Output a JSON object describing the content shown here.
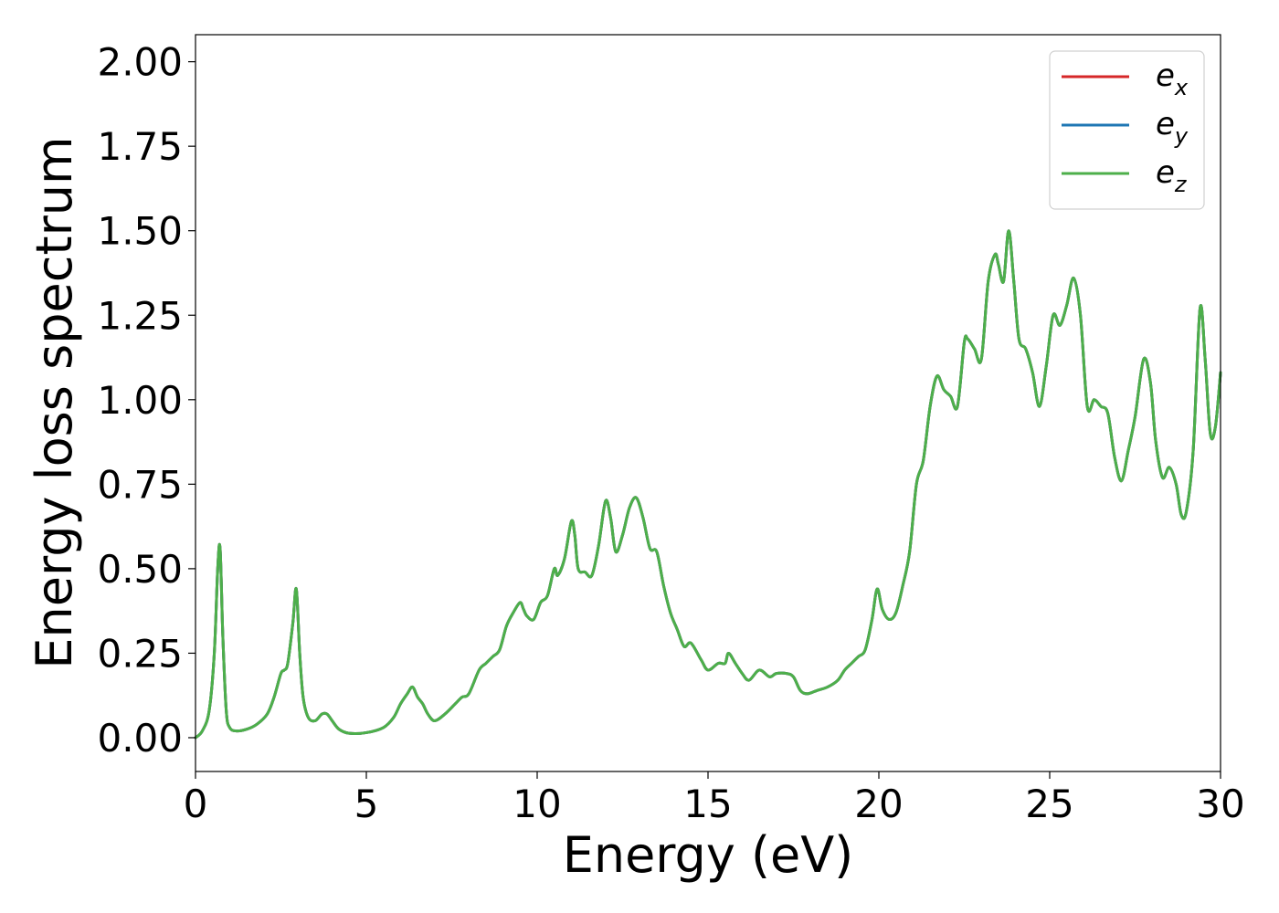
{
  "chart_data": {
    "type": "line",
    "title": "",
    "xlabel": "Energy (eV)",
    "ylabel": "Energy loss spectrum",
    "xlim": [
      0,
      30
    ],
    "ylim": [
      -0.1,
      2.08
    ],
    "xticks": [
      0,
      5,
      10,
      15,
      20,
      25,
      30
    ],
    "xtick_labels": [
      "0",
      "5",
      "10",
      "15",
      "20",
      "25",
      "30"
    ],
    "yticks": [
      0,
      0.25,
      0.5,
      0.75,
      1.0,
      1.25,
      1.5,
      1.75,
      2.0
    ],
    "ytick_labels": [
      "0.00",
      "0.25",
      "0.50",
      "0.75",
      "1.00",
      "1.25",
      "1.50",
      "1.75",
      "2.00"
    ],
    "grid": false,
    "legend_position": "top-right",
    "x": [
      0,
      0.2,
      0.4,
      0.55,
      0.65,
      0.72,
      0.8,
      0.9,
      1.0,
      1.2,
      1.5,
      1.8,
      2.1,
      2.3,
      2.5,
      2.6,
      2.7,
      2.85,
      2.95,
      3.05,
      3.15,
      3.3,
      3.5,
      3.7,
      3.85,
      4.0,
      4.2,
      4.5,
      5.0,
      5.5,
      5.8,
      6.0,
      6.2,
      6.35,
      6.5,
      6.65,
      6.8,
      7.0,
      7.3,
      7.6,
      7.8,
      8.0,
      8.3,
      8.5,
      8.7,
      8.9,
      9.1,
      9.3,
      9.5,
      9.6,
      9.7,
      9.9,
      10.1,
      10.3,
      10.5,
      10.6,
      10.8,
      11.0,
      11.1,
      11.2,
      11.4,
      11.6,
      11.8,
      12.0,
      12.15,
      12.3,
      12.5,
      12.7,
      12.9,
      13.1,
      13.3,
      13.5,
      13.7,
      13.9,
      14.1,
      14.3,
      14.5,
      14.8,
      15.0,
      15.3,
      15.5,
      15.6,
      15.8,
      16.0,
      16.2,
      16.5,
      16.8,
      17.0,
      17.3,
      17.5,
      17.7,
      17.9,
      18.2,
      18.5,
      18.8,
      19.0,
      19.2,
      19.4,
      19.6,
      19.8,
      19.95,
      20.1,
      20.3,
      20.5,
      20.7,
      20.9,
      21.1,
      21.3,
      21.5,
      21.7,
      21.9,
      22.1,
      22.3,
      22.5,
      22.6,
      22.8,
      23.0,
      23.2,
      23.4,
      23.5,
      23.65,
      23.8,
      23.95,
      24.1,
      24.3,
      24.5,
      24.7,
      24.9,
      25.1,
      25.3,
      25.5,
      25.7,
      25.9,
      26.1,
      26.3,
      26.5,
      26.7,
      26.9,
      27.1,
      27.3,
      27.5,
      27.75,
      27.95,
      28.1,
      28.3,
      28.5,
      28.7,
      28.85,
      29.0,
      29.2,
      29.4,
      29.55,
      29.7,
      29.85,
      30.0
    ],
    "series": [
      {
        "name": "e_x",
        "values": [
          0.0,
          0.02,
          0.08,
          0.25,
          0.5,
          0.56,
          0.3,
          0.08,
          0.03,
          0.02,
          0.025,
          0.04,
          0.07,
          0.12,
          0.19,
          0.2,
          0.22,
          0.34,
          0.44,
          0.25,
          0.12,
          0.06,
          0.05,
          0.07,
          0.07,
          0.05,
          0.025,
          0.013,
          0.015,
          0.03,
          0.06,
          0.1,
          0.13,
          0.15,
          0.12,
          0.1,
          0.07,
          0.05,
          0.07,
          0.1,
          0.12,
          0.13,
          0.2,
          0.22,
          0.24,
          0.26,
          0.33,
          0.37,
          0.4,
          0.38,
          0.36,
          0.35,
          0.4,
          0.42,
          0.5,
          0.48,
          0.53,
          0.64,
          0.6,
          0.5,
          0.49,
          0.48,
          0.57,
          0.7,
          0.65,
          0.55,
          0.6,
          0.68,
          0.71,
          0.65,
          0.56,
          0.55,
          0.45,
          0.37,
          0.32,
          0.27,
          0.28,
          0.23,
          0.2,
          0.22,
          0.22,
          0.25,
          0.22,
          0.19,
          0.17,
          0.2,
          0.18,
          0.19,
          0.19,
          0.18,
          0.14,
          0.13,
          0.14,
          0.15,
          0.17,
          0.2,
          0.22,
          0.24,
          0.26,
          0.35,
          0.44,
          0.38,
          0.35,
          0.37,
          0.45,
          0.55,
          0.75,
          0.82,
          0.98,
          1.07,
          1.03,
          1.01,
          0.98,
          1.17,
          1.18,
          1.15,
          1.12,
          1.35,
          1.43,
          1.4,
          1.35,
          1.5,
          1.35,
          1.18,
          1.15,
          1.08,
          0.98,
          1.1,
          1.25,
          1.22,
          1.28,
          1.36,
          1.25,
          0.98,
          1.0,
          0.98,
          0.96,
          0.83,
          0.76,
          0.85,
          0.95,
          1.12,
          1.05,
          0.88,
          0.77,
          0.8,
          0.75,
          0.66,
          0.67,
          0.85,
          1.27,
          1.12,
          0.9,
          0.92,
          1.08
        ]
      },
      {
        "name": "e_y",
        "values": [
          0.0,
          0.02,
          0.08,
          0.25,
          0.5,
          0.56,
          0.3,
          0.08,
          0.03,
          0.02,
          0.025,
          0.04,
          0.07,
          0.12,
          0.19,
          0.2,
          0.22,
          0.34,
          0.44,
          0.25,
          0.12,
          0.06,
          0.05,
          0.07,
          0.07,
          0.05,
          0.025,
          0.013,
          0.015,
          0.03,
          0.06,
          0.1,
          0.13,
          0.15,
          0.12,
          0.1,
          0.07,
          0.05,
          0.07,
          0.1,
          0.12,
          0.13,
          0.2,
          0.22,
          0.24,
          0.26,
          0.33,
          0.37,
          0.4,
          0.38,
          0.36,
          0.35,
          0.4,
          0.42,
          0.5,
          0.48,
          0.53,
          0.64,
          0.6,
          0.5,
          0.49,
          0.48,
          0.57,
          0.7,
          0.65,
          0.55,
          0.6,
          0.68,
          0.71,
          0.65,
          0.56,
          0.55,
          0.45,
          0.37,
          0.32,
          0.27,
          0.28,
          0.23,
          0.2,
          0.22,
          0.22,
          0.25,
          0.22,
          0.19,
          0.17,
          0.2,
          0.18,
          0.19,
          0.19,
          0.18,
          0.14,
          0.13,
          0.14,
          0.15,
          0.17,
          0.2,
          0.22,
          0.24,
          0.26,
          0.35,
          0.44,
          0.38,
          0.35,
          0.37,
          0.45,
          0.55,
          0.75,
          0.82,
          0.98,
          1.07,
          1.03,
          1.01,
          0.98,
          1.17,
          1.18,
          1.15,
          1.12,
          1.35,
          1.43,
          1.4,
          1.35,
          1.5,
          1.35,
          1.18,
          1.15,
          1.08,
          0.98,
          1.1,
          1.25,
          1.22,
          1.28,
          1.36,
          1.25,
          0.98,
          1.0,
          0.98,
          0.96,
          0.83,
          0.76,
          0.85,
          0.95,
          1.12,
          1.05,
          0.88,
          0.77,
          0.8,
          0.75,
          0.66,
          0.67,
          0.85,
          1.27,
          1.12,
          0.9,
          0.92,
          1.08
        ]
      },
      {
        "name": "e_z",
        "values": [
          0.0,
          0.02,
          0.08,
          0.25,
          0.5,
          0.56,
          0.3,
          0.08,
          0.03,
          0.02,
          0.025,
          0.04,
          0.07,
          0.12,
          0.19,
          0.2,
          0.22,
          0.34,
          0.44,
          0.25,
          0.12,
          0.06,
          0.05,
          0.07,
          0.07,
          0.05,
          0.025,
          0.013,
          0.015,
          0.03,
          0.06,
          0.1,
          0.13,
          0.15,
          0.12,
          0.1,
          0.07,
          0.05,
          0.07,
          0.1,
          0.12,
          0.13,
          0.2,
          0.22,
          0.24,
          0.26,
          0.33,
          0.37,
          0.4,
          0.38,
          0.36,
          0.35,
          0.4,
          0.42,
          0.5,
          0.48,
          0.53,
          0.64,
          0.6,
          0.5,
          0.49,
          0.48,
          0.57,
          0.7,
          0.65,
          0.55,
          0.6,
          0.68,
          0.71,
          0.65,
          0.56,
          0.55,
          0.45,
          0.37,
          0.32,
          0.27,
          0.28,
          0.23,
          0.2,
          0.22,
          0.22,
          0.25,
          0.22,
          0.19,
          0.17,
          0.2,
          0.18,
          0.19,
          0.19,
          0.18,
          0.14,
          0.13,
          0.14,
          0.15,
          0.17,
          0.2,
          0.22,
          0.24,
          0.26,
          0.35,
          0.44,
          0.38,
          0.35,
          0.37,
          0.45,
          0.55,
          0.75,
          0.82,
          0.98,
          1.07,
          1.03,
          1.01,
          0.98,
          1.17,
          1.18,
          1.15,
          1.12,
          1.35,
          1.43,
          1.4,
          1.35,
          1.5,
          1.35,
          1.18,
          1.15,
          1.08,
          0.98,
          1.1,
          1.25,
          1.22,
          1.28,
          1.36,
          1.25,
          0.98,
          1.0,
          0.98,
          0.96,
          0.83,
          0.76,
          0.85,
          0.95,
          1.12,
          1.05,
          0.88,
          0.77,
          0.8,
          0.75,
          0.66,
          0.67,
          0.85,
          1.27,
          1.12,
          0.9,
          0.92,
          1.08
        ]
      }
    ],
    "legend": [
      {
        "base": "e",
        "sub": "x",
        "color": "#d62728"
      },
      {
        "base": "e",
        "sub": "y",
        "color": "#1f77b4"
      },
      {
        "base": "e",
        "sub": "z",
        "color": "#4daf4a"
      }
    ]
  }
}
